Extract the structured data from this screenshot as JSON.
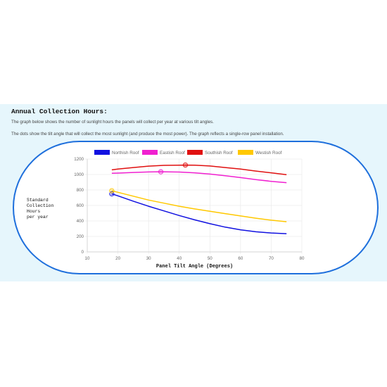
{
  "page": {
    "heading": "Annual Collection Hours:",
    "paragraph_1": "The graph below shows the number of sunlight hours the panels will collect per year at various tilt angles.",
    "paragraph_2": "The dots show the tilt angle that will collect the most sunlight (and produce the most power). The graph reflects a single-row panel installation."
  },
  "chart_data": {
    "type": "line",
    "title": "",
    "xlabel": "Panel Tilt Angle (Degrees)",
    "ylabel_lines": [
      "Standard",
      "Collection",
      "Hours",
      "per year"
    ],
    "xlim": [
      10,
      80
    ],
    "ylim": [
      0,
      1200
    ],
    "x_ticks": [
      10,
      20,
      30,
      40,
      50,
      60,
      70,
      80
    ],
    "y_ticks": [
      0,
      200,
      400,
      600,
      800,
      1000,
      1200
    ],
    "grid": true,
    "legend_position": "top",
    "series": [
      {
        "name": "Northish Roof",
        "color": "#1010e0",
        "points": [
          [
            18,
            750
          ],
          [
            20,
            725
          ],
          [
            25,
            655
          ],
          [
            30,
            590
          ],
          [
            35,
            530
          ],
          [
            40,
            470
          ],
          [
            45,
            415
          ],
          [
            50,
            365
          ],
          [
            55,
            320
          ],
          [
            60,
            285
          ],
          [
            65,
            260
          ],
          [
            70,
            245
          ],
          [
            75,
            235
          ]
        ],
        "optimum": [
          18,
          750
        ]
      },
      {
        "name": "Eastish Roof",
        "color": "#f020d0",
        "points": [
          [
            18,
            1015
          ],
          [
            20,
            1018
          ],
          [
            25,
            1026
          ],
          [
            30,
            1033
          ],
          [
            34,
            1035
          ],
          [
            40,
            1032
          ],
          [
            45,
            1022
          ],
          [
            50,
            1005
          ],
          [
            55,
            985
          ],
          [
            60,
            960
          ],
          [
            65,
            935
          ],
          [
            70,
            912
          ],
          [
            75,
            895
          ]
        ],
        "optimum": [
          34,
          1035
        ]
      },
      {
        "name": "Southish Roof",
        "color": "#e01010",
        "points": [
          [
            18,
            1060
          ],
          [
            20,
            1070
          ],
          [
            25,
            1090
          ],
          [
            30,
            1108
          ],
          [
            35,
            1118
          ],
          [
            42,
            1122
          ],
          [
            45,
            1120
          ],
          [
            50,
            1110
          ],
          [
            55,
            1090
          ],
          [
            60,
            1070
          ],
          [
            65,
            1045
          ],
          [
            70,
            1022
          ],
          [
            75,
            998
          ]
        ],
        "optimum": [
          42,
          1122
        ]
      },
      {
        "name": "Westish Roof",
        "color": "#ffc800",
        "points": [
          [
            18,
            790
          ],
          [
            20,
            770
          ],
          [
            25,
            720
          ],
          [
            30,
            670
          ],
          [
            35,
            630
          ],
          [
            40,
            590
          ],
          [
            45,
            555
          ],
          [
            50,
            525
          ],
          [
            55,
            495
          ],
          [
            60,
            465
          ],
          [
            65,
            435
          ],
          [
            70,
            410
          ],
          [
            75,
            390
          ]
        ],
        "optimum": [
          18,
          790
        ]
      }
    ]
  }
}
